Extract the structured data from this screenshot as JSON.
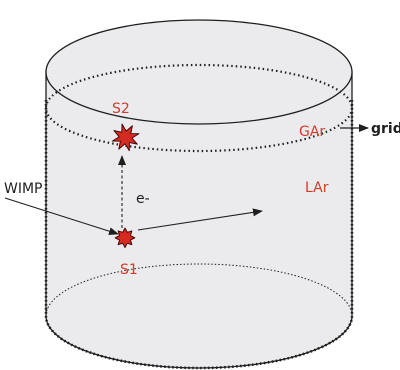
{
  "labels": {
    "s2": "S2",
    "s1": "S1",
    "gar": "GAr",
    "lar": "LAr",
    "grid": "grid",
    "wimp": "WIMP",
    "electron": "e-"
  },
  "colors": {
    "signal_text": "#d23c2c",
    "flash_fill": "#d42a22",
    "cylinder_fill": "#ebebed",
    "outline": "#1f1f1f"
  }
}
